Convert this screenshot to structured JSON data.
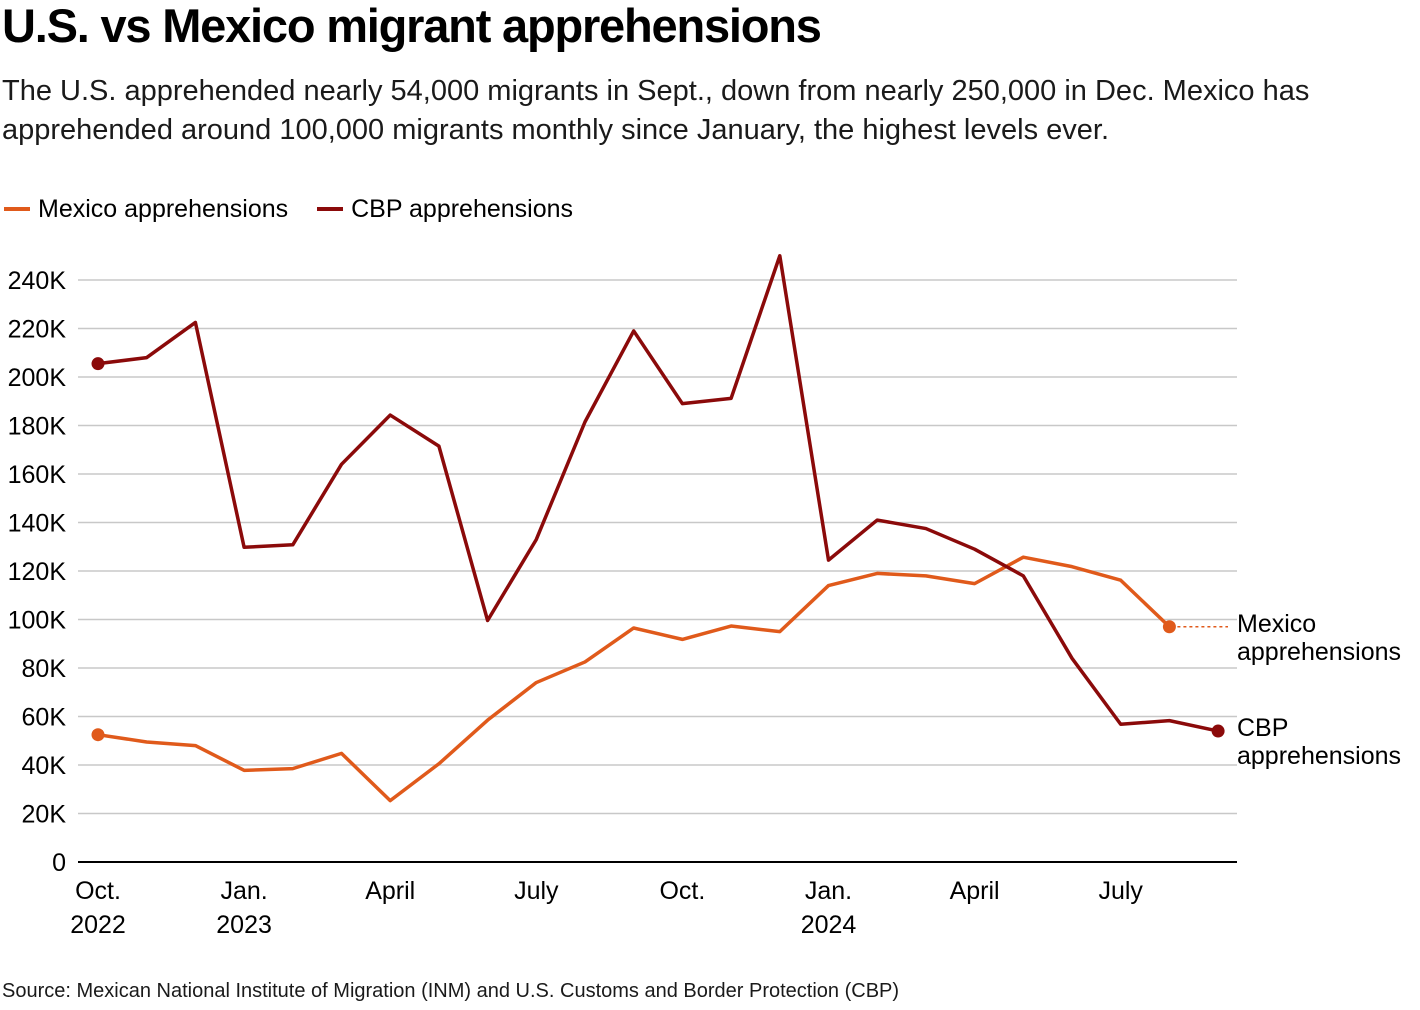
{
  "title": "U.S. vs Mexico migrant apprehensions",
  "subtitle": "The U.S. apprehended nearly 54,000 migrants in Sept., down from nearly 250,000 in Dec. Mexico has apprehended around 100,000 migrants monthly since January, the highest levels ever.",
  "source": "Source: Mexican National Institute of Migration (INM) and U.S. Customs and Border Protection (CBP)",
  "colors": {
    "mexico": "#e05a1b",
    "cbp": "#8b0a0a",
    "grid": "#c8c8c8",
    "axis": "#000000"
  },
  "chart_data": {
    "type": "line",
    "title": "U.S. vs Mexico migrant apprehensions",
    "xlabel": "",
    "ylabel": "",
    "ylim": [
      0,
      250000
    ],
    "yticks": [
      0,
      20000,
      40000,
      60000,
      80000,
      100000,
      120000,
      140000,
      160000,
      180000,
      200000,
      220000,
      240000
    ],
    "ytick_labels": [
      "0",
      "20K",
      "40K",
      "60K",
      "80K",
      "100K",
      "120K",
      "140K",
      "160K",
      "180K",
      "200K",
      "220K",
      "240K"
    ],
    "months": [
      "2022-10",
      "2022-11",
      "2022-12",
      "2023-01",
      "2023-02",
      "2023-03",
      "2023-04",
      "2023-05",
      "2023-06",
      "2023-07",
      "2023-08",
      "2023-09",
      "2023-10",
      "2023-11",
      "2023-12",
      "2024-01",
      "2024-02",
      "2024-03",
      "2024-04",
      "2024-05",
      "2024-06",
      "2024-07",
      "2024-08",
      "2024-09"
    ],
    "xticks": [
      {
        "index": 0,
        "lines": [
          "Oct.",
          "2022"
        ]
      },
      {
        "index": 3,
        "lines": [
          "Jan.",
          "2023"
        ]
      },
      {
        "index": 6,
        "lines": [
          "April"
        ]
      },
      {
        "index": 9,
        "lines": [
          "July"
        ]
      },
      {
        "index": 12,
        "lines": [
          "Oct."
        ]
      },
      {
        "index": 15,
        "lines": [
          "Jan.",
          "2024"
        ]
      },
      {
        "index": 18,
        "lines": [
          "April"
        ]
      },
      {
        "index": 21,
        "lines": [
          "July"
        ]
      }
    ],
    "series": [
      {
        "name": "Mexico apprehensions",
        "key": "mexico",
        "end_label": [
          "Mexico",
          "apprehensions"
        ],
        "values": [
          52500,
          49500,
          48000,
          37800,
          38500,
          44800,
          25300,
          40500,
          58500,
          74000,
          82500,
          96500,
          91800,
          97300,
          95000,
          114000,
          119000,
          118000,
          114800,
          125700,
          121800,
          116200,
          97000,
          null
        ]
      },
      {
        "name": "CBP apprehensions",
        "key": "cbp",
        "end_label": [
          "CBP",
          "apprehensions"
        ],
        "values": [
          205500,
          208000,
          222500,
          129800,
          130800,
          164000,
          184300,
          171500,
          99600,
          133000,
          181500,
          219000,
          189000,
          191200,
          250000,
          124500,
          141000,
          137500,
          129000,
          118000,
          84000,
          56800,
          58300,
          54000
        ]
      }
    ],
    "legend": {
      "position": "top-left"
    }
  }
}
